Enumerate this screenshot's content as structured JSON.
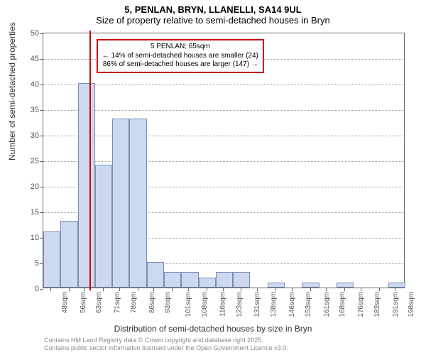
{
  "title": {
    "line1": "5, PENLAN, BRYN, LLANELLI, SA14 9UL",
    "line2": "Size of property relative to semi-detached houses in Bryn"
  },
  "chart": {
    "type": "histogram",
    "background_color": "#ffffff",
    "border_color": "#666666",
    "grid_color": "#999999",
    "bar_fill": "#cdd9f0",
    "bar_border": "#7a8db5",
    "reference_line_color": "#d00000",
    "reference_value_sqm": 65,
    "bin_edges_sqm": [
      45,
      52.5,
      60,
      67.5,
      75,
      82.5,
      90,
      97.5,
      105,
      112.5,
      120,
      127.5,
      135,
      142.5,
      150,
      157.5,
      165,
      172.5,
      180,
      187.5,
      195,
      202.5
    ],
    "bin_centers_sqm": [
      48,
      56,
      63,
      71,
      78,
      86,
      93,
      101,
      108,
      116,
      123,
      131,
      138,
      146,
      153,
      161,
      168,
      176,
      183,
      191,
      198
    ],
    "bin_counts": [
      11,
      13,
      40,
      24,
      33,
      33,
      5,
      3,
      3,
      2,
      3,
      3,
      0,
      1,
      0,
      1,
      0,
      1,
      0,
      0,
      1
    ],
    "x_tick_labels": [
      "48sqm",
      "56sqm",
      "63sqm",
      "71sqm",
      "78sqm",
      "86sqm",
      "93sqm",
      "101sqm",
      "108sqm",
      "116sqm",
      "123sqm",
      "131sqm",
      "138sqm",
      "146sqm",
      "153sqm",
      "161sqm",
      "168sqm",
      "176sqm",
      "183sqm",
      "191sqm",
      "198sqm"
    ],
    "xlim": [
      45,
      202.5
    ],
    "ylim": [
      0,
      50
    ],
    "ytick_step": 5,
    "y_ticks": [
      0,
      5,
      10,
      15,
      20,
      25,
      30,
      35,
      40,
      45,
      50
    ],
    "xlabel": "Distribution of semi-detached houses by size in Bryn",
    "ylabel": "Number of semi-detached properties",
    "label_fontsize": 12,
    "tick_fontsize": 11
  },
  "annotation": {
    "line1": "5 PENLAN; 65sqm",
    "line2": "← 14% of semi-detached houses are smaller (24)",
    "line3": "86% of semi-detached houses are larger (147) →"
  },
  "attribution": {
    "line1": "Contains HM Land Registry data © Crown copyright and database right 2025.",
    "line2": "Contains public sector information licensed under the Open Government Licence v3.0."
  }
}
